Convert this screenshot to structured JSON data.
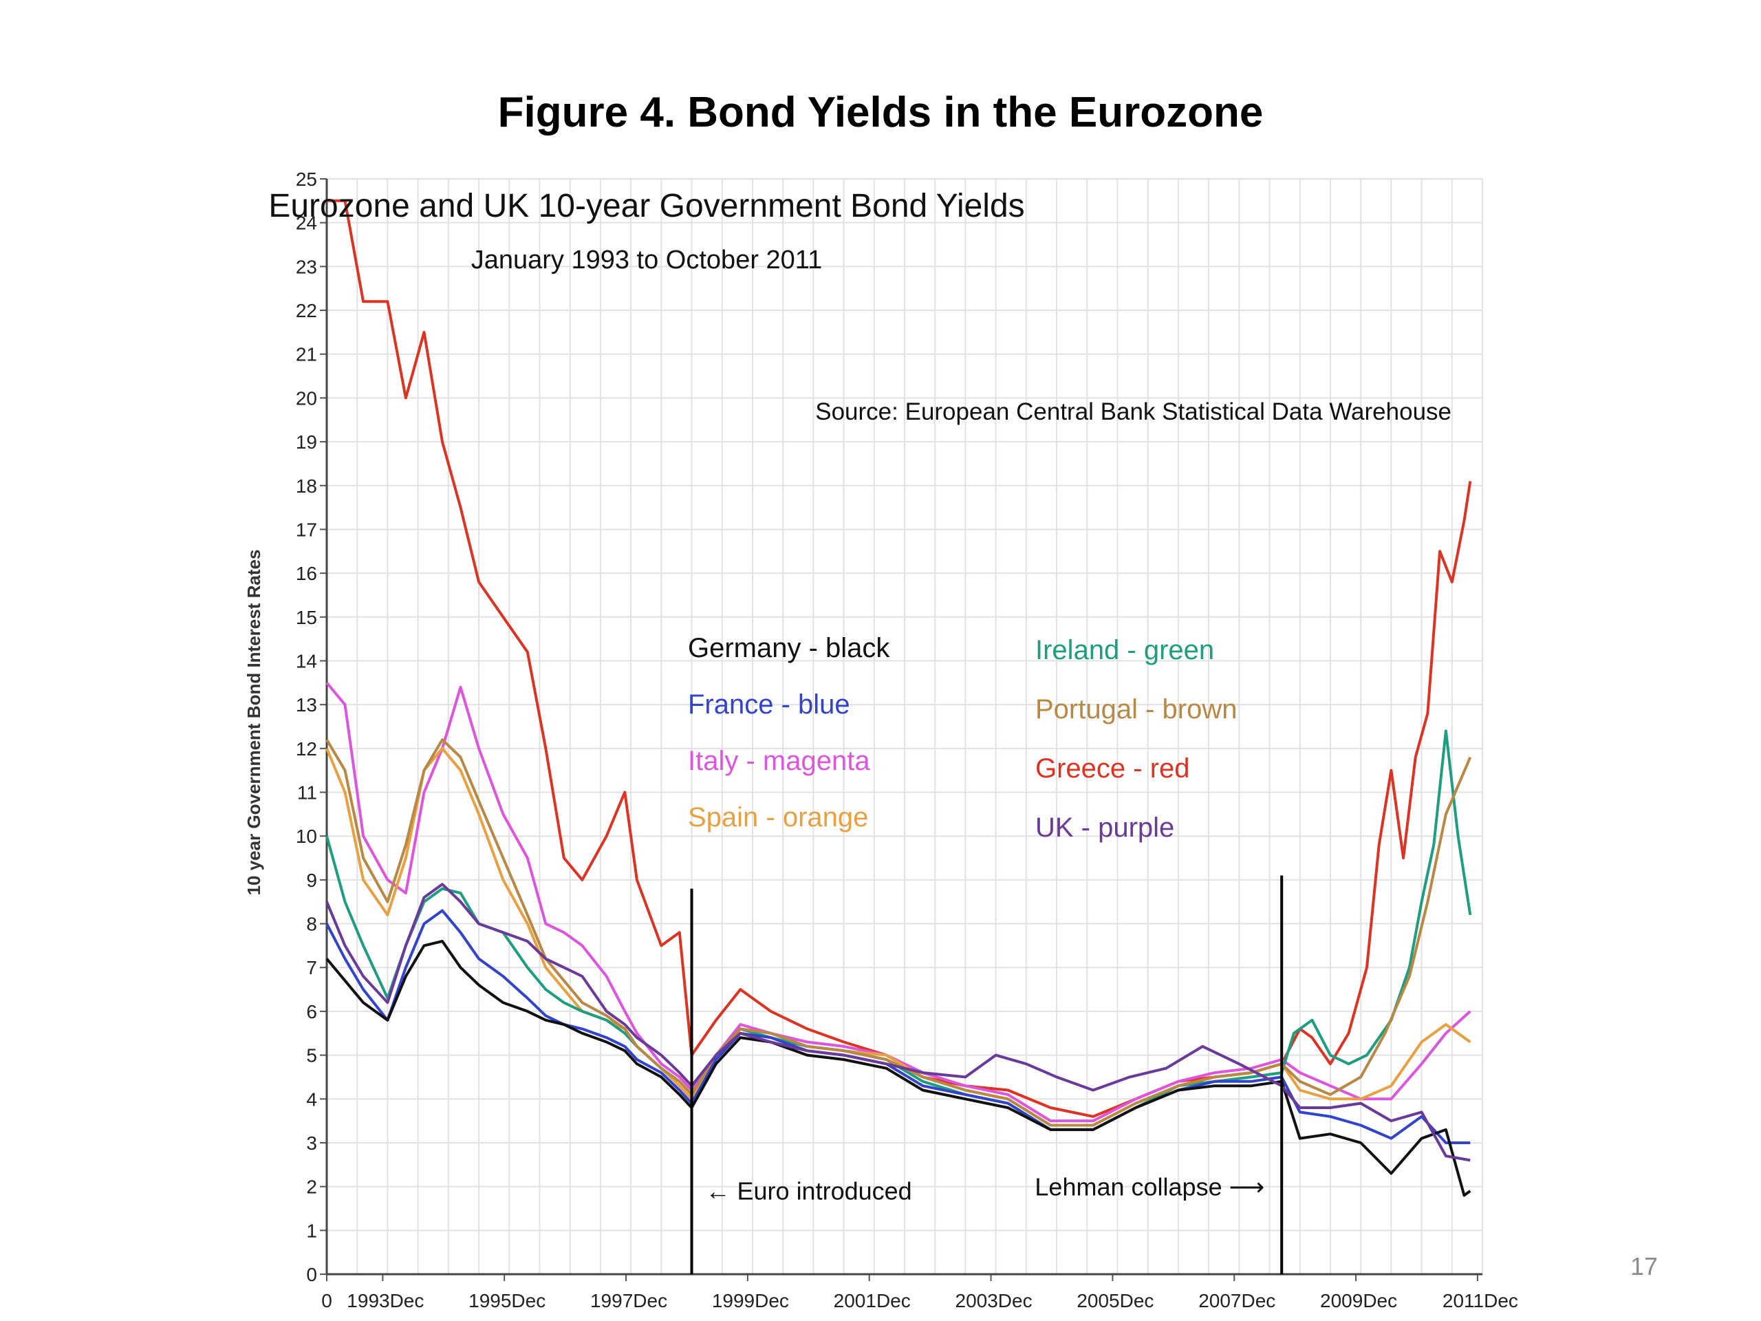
{
  "slide": {
    "title": "Figure 4. Bond Yields in the Eurozone",
    "page_number": "17"
  },
  "chart_data": {
    "type": "line",
    "title": "Eurozone and UK 10-year Government Bond Yields",
    "subtitle": "January 1993 to October 2011",
    "source": "Source:  European Central Bank Statistical Data Warehouse",
    "ylabel": "10 year Government Bond Interest Rates",
    "xlabel": "",
    "ylim": [
      0,
      25
    ],
    "xlim": [
      1993.0,
      2012.0
    ],
    "yticks": [
      0,
      1,
      2,
      3,
      4,
      5,
      6,
      7,
      8,
      9,
      10,
      11,
      12,
      13,
      14,
      15,
      16,
      17,
      18,
      19,
      20,
      21,
      22,
      23,
      24,
      25
    ],
    "xticks": [
      {
        "x": 1993.0,
        "label": "0"
      },
      {
        "x": 1993.92,
        "label": "1993Dec"
      },
      {
        "x": 1995.92,
        "label": "1995Dec"
      },
      {
        "x": 1997.92,
        "label": "1997Dec"
      },
      {
        "x": 1999.92,
        "label": "1999Dec"
      },
      {
        "x": 2001.92,
        "label": "2001Dec"
      },
      {
        "x": 2003.92,
        "label": "2003Dec"
      },
      {
        "x": 2005.92,
        "label": "2005Dec"
      },
      {
        "x": 2007.92,
        "label": "2007Dec"
      },
      {
        "x": 2009.92,
        "label": "2009Dec"
      },
      {
        "x": 2011.92,
        "label": "2011Dec"
      }
    ],
    "grid": true,
    "legend": {
      "position": "center",
      "entries": [
        {
          "label": "Germany - black",
          "color": "#111111"
        },
        {
          "label": "France - blue",
          "color": "#3344cc"
        },
        {
          "label": "Italy - magenta",
          "color": "#dd55dd"
        },
        {
          "label": "Spain - orange",
          "color": "#e8a040"
        },
        {
          "label": "Ireland - green",
          "color": "#1e9e80"
        },
        {
          "label": "Portugal - brown",
          "color": "#b88844"
        },
        {
          "label": "Greece - red",
          "color": "#dd3322"
        },
        {
          "label": "UK - purple",
          "color": "#6a3a9a"
        }
      ]
    },
    "annotations": [
      {
        "text": "← Euro introduced",
        "x": 1999.0
      },
      {
        "text": "Lehman collapse ⟶",
        "x": 2008.7
      }
    ],
    "vlines": [
      {
        "x": 1999.0,
        "ymax": 8.8
      },
      {
        "x": 2008.7,
        "ymax": 9.1
      }
    ],
    "series": [
      {
        "name": "Greece - red",
        "color": "#dd3322",
        "x": [
          1993.0,
          1993.3,
          1993.6,
          1994.0,
          1994.3,
          1994.6,
          1994.9,
          1995.2,
          1995.5,
          1995.9,
          1996.3,
          1996.6,
          1996.9,
          1997.2,
          1997.6,
          1997.9,
          1998.1,
          1998.5,
          1998.8,
          1999.0,
          1999.4,
          1999.8,
          2000.3,
          2000.9,
          2001.5,
          2002.2,
          2002.8,
          2003.5,
          2004.2,
          2004.9,
          2005.6,
          2006.3,
          2007.0,
          2007.6,
          2008.2,
          2008.7,
          2009.0,
          2009.2,
          2009.5,
          2009.8,
          2010.1,
          2010.3,
          2010.5,
          2010.7,
          2010.9,
          2011.1,
          2011.3,
          2011.5,
          2011.7,
          2011.8
        ],
        "y": [
          24.5,
          24.5,
          22.2,
          22.2,
          20.0,
          21.5,
          19.0,
          17.5,
          15.8,
          15.0,
          14.2,
          12.0,
          9.5,
          9.0,
          10.0,
          11.0,
          9.0,
          7.5,
          7.8,
          5.0,
          5.8,
          6.5,
          6.0,
          5.6,
          5.3,
          5.0,
          4.5,
          4.3,
          4.2,
          3.8,
          3.6,
          4.0,
          4.4,
          4.5,
          4.6,
          4.8,
          5.6,
          5.4,
          4.8,
          5.5,
          7.0,
          9.8,
          11.5,
          9.5,
          11.8,
          12.8,
          16.5,
          15.8,
          17.2,
          18.1
        ]
      },
      {
        "name": "Italy - magenta",
        "color": "#dd55dd",
        "x": [
          1993.0,
          1993.3,
          1993.6,
          1994.0,
          1994.3,
          1994.6,
          1994.9,
          1995.2,
          1995.5,
          1995.9,
          1996.3,
          1996.6,
          1996.9,
          1997.2,
          1997.6,
          1997.9,
          1998.1,
          1998.5,
          1998.8,
          1999.0,
          1999.4,
          1999.8,
          2000.3,
          2000.9,
          2001.5,
          2002.2,
          2002.8,
          2003.5,
          2004.2,
          2004.9,
          2005.6,
          2006.3,
          2007.0,
          2007.6,
          2008.2,
          2008.7,
          2009.0,
          2009.5,
          2010.0,
          2010.5,
          2011.0,
          2011.4,
          2011.8
        ],
        "y": [
          13.5,
          13.0,
          10.0,
          9.0,
          8.7,
          11.0,
          12.0,
          13.4,
          12.0,
          10.5,
          9.5,
          8.0,
          7.8,
          7.5,
          6.8,
          6.0,
          5.5,
          4.8,
          4.5,
          4.2,
          5.0,
          5.7,
          5.5,
          5.3,
          5.2,
          5.0,
          4.6,
          4.3,
          4.1,
          3.5,
          3.5,
          4.0,
          4.4,
          4.6,
          4.7,
          4.9,
          4.6,
          4.3,
          4.0,
          4.0,
          4.8,
          5.5,
          6.0
        ]
      },
      {
        "name": "Spain - orange",
        "color": "#e8a040",
        "x": [
          1993.0,
          1993.3,
          1993.6,
          1994.0,
          1994.3,
          1994.6,
          1994.9,
          1995.2,
          1995.5,
          1995.9,
          1996.3,
          1996.6,
          1996.9,
          1997.2,
          1997.6,
          1997.9,
          1998.1,
          1998.5,
          1998.8,
          1999.0,
          1999.4,
          1999.8,
          2000.3,
          2000.9,
          2001.5,
          2002.2,
          2002.8,
          2003.5,
          2004.2,
          2004.9,
          2005.6,
          2006.3,
          2007.0,
          2007.6,
          2008.2,
          2008.7,
          2009.0,
          2009.5,
          2010.0,
          2010.5,
          2011.0,
          2011.4,
          2011.8
        ],
        "y": [
          12.0,
          11.0,
          9.0,
          8.2,
          9.5,
          11.5,
          12.0,
          11.5,
          10.5,
          9.0,
          8.0,
          7.0,
          6.5,
          6.0,
          5.8,
          5.6,
          5.2,
          4.7,
          4.3,
          4.0,
          5.0,
          5.6,
          5.5,
          5.2,
          5.1,
          5.0,
          4.5,
          4.2,
          4.0,
          3.4,
          3.4,
          3.9,
          4.3,
          4.5,
          4.6,
          4.8,
          4.2,
          4.0,
          4.0,
          4.3,
          5.3,
          5.7,
          5.3
        ]
      },
      {
        "name": "Ireland - green",
        "color": "#1e9e80",
        "x": [
          1993.0,
          1993.3,
          1993.6,
          1994.0,
          1994.3,
          1994.6,
          1994.9,
          1995.2,
          1995.5,
          1995.9,
          1996.3,
          1996.6,
          1996.9,
          1997.2,
          1997.6,
          1997.9,
          1998.1,
          1998.5,
          1998.8,
          1999.0,
          1999.4,
          1999.8,
          2000.3,
          2000.9,
          2001.5,
          2002.2,
          2002.8,
          2003.5,
          2004.2,
          2004.9,
          2005.6,
          2006.3,
          2007.0,
          2007.6,
          2008.2,
          2008.7,
          2008.9,
          2009.2,
          2009.5,
          2009.8,
          2010.1,
          2010.5,
          2010.8,
          2011.0,
          2011.2,
          2011.4,
          2011.6,
          2011.8
        ],
        "y": [
          10.0,
          8.5,
          7.5,
          6.3,
          7.5,
          8.5,
          8.8,
          8.7,
          8.0,
          7.8,
          7.0,
          6.5,
          6.2,
          6.0,
          5.8,
          5.5,
          5.2,
          4.7,
          4.4,
          4.1,
          5.0,
          5.6,
          5.4,
          5.2,
          5.1,
          4.9,
          4.4,
          4.1,
          3.9,
          3.3,
          3.3,
          3.8,
          4.3,
          4.4,
          4.5,
          4.6,
          5.5,
          5.8,
          5.0,
          4.8,
          5.0,
          5.8,
          7.0,
          8.5,
          9.8,
          12.4,
          10.0,
          8.2
        ]
      },
      {
        "name": "Portugal - brown",
        "color": "#b88844",
        "x": [
          1993.0,
          1993.3,
          1993.6,
          1994.0,
          1994.3,
          1994.6,
          1994.9,
          1995.2,
          1995.5,
          1995.9,
          1996.3,
          1996.6,
          1996.9,
          1997.2,
          1997.6,
          1997.9,
          1998.1,
          1998.5,
          1998.8,
          1999.0,
          1999.4,
          1999.8,
          2000.3,
          2000.9,
          2001.5,
          2002.2,
          2002.8,
          2003.5,
          2004.2,
          2004.9,
          2005.6,
          2006.3,
          2007.0,
          2007.6,
          2008.2,
          2008.7,
          2009.0,
          2009.5,
          2010.0,
          2010.4,
          2010.8,
          2011.1,
          2011.4,
          2011.8
        ],
        "y": [
          12.2,
          11.5,
          9.5,
          8.5,
          9.8,
          11.5,
          12.2,
          11.8,
          10.8,
          9.5,
          8.2,
          7.2,
          6.7,
          6.2,
          5.9,
          5.6,
          5.2,
          4.7,
          4.4,
          4.1,
          5.0,
          5.6,
          5.5,
          5.2,
          5.1,
          4.9,
          4.5,
          4.2,
          4.0,
          3.4,
          3.4,
          3.9,
          4.3,
          4.5,
          4.6,
          4.8,
          4.4,
          4.1,
          4.5,
          5.5,
          6.8,
          8.5,
          10.5,
          11.8
        ]
      },
      {
        "name": "France - blue",
        "color": "#3344cc",
        "x": [
          1993.0,
          1993.3,
          1993.6,
          1994.0,
          1994.3,
          1994.6,
          1994.9,
          1995.2,
          1995.5,
          1995.9,
          1996.3,
          1996.6,
          1996.9,
          1997.2,
          1997.6,
          1997.9,
          1998.1,
          1998.5,
          1998.8,
          1999.0,
          1999.4,
          1999.8,
          2000.3,
          2000.9,
          2001.5,
          2002.2,
          2002.8,
          2003.5,
          2004.2,
          2004.9,
          2005.6,
          2006.3,
          2007.0,
          2007.6,
          2008.2,
          2008.7,
          2009.0,
          2009.5,
          2010.0,
          2010.5,
          2011.0,
          2011.4,
          2011.8
        ],
        "y": [
          8.0,
          7.2,
          6.5,
          5.8,
          7.0,
          8.0,
          8.3,
          7.8,
          7.2,
          6.8,
          6.3,
          5.9,
          5.7,
          5.6,
          5.4,
          5.2,
          4.9,
          4.6,
          4.2,
          3.9,
          4.9,
          5.5,
          5.4,
          5.1,
          5.0,
          4.8,
          4.3,
          4.1,
          3.9,
          3.3,
          3.3,
          3.8,
          4.2,
          4.4,
          4.4,
          4.5,
          3.7,
          3.6,
          3.4,
          3.1,
          3.6,
          3.0,
          3.0
        ]
      },
      {
        "name": "Germany - black",
        "color": "#111111",
        "x": [
          1993.0,
          1993.3,
          1993.6,
          1994.0,
          1994.3,
          1994.6,
          1994.9,
          1995.2,
          1995.5,
          1995.9,
          1996.3,
          1996.6,
          1996.9,
          1997.2,
          1997.6,
          1997.9,
          1998.1,
          1998.5,
          1998.8,
          1999.0,
          1999.4,
          1999.8,
          2000.3,
          2000.9,
          2001.5,
          2002.2,
          2002.8,
          2003.5,
          2004.2,
          2004.9,
          2005.6,
          2006.3,
          2007.0,
          2007.6,
          2008.2,
          2008.7,
          2009.0,
          2009.5,
          2010.0,
          2010.5,
          2011.0,
          2011.4,
          2011.7,
          2011.8
        ],
        "y": [
          7.2,
          6.7,
          6.2,
          5.8,
          6.8,
          7.5,
          7.6,
          7.0,
          6.6,
          6.2,
          6.0,
          5.8,
          5.7,
          5.5,
          5.3,
          5.1,
          4.8,
          4.5,
          4.1,
          3.8,
          4.8,
          5.4,
          5.3,
          5.0,
          4.9,
          4.7,
          4.2,
          4.0,
          3.8,
          3.3,
          3.3,
          3.8,
          4.2,
          4.3,
          4.3,
          4.4,
          3.1,
          3.2,
          3.0,
          2.3,
          3.1,
          3.3,
          1.8,
          1.9
        ]
      },
      {
        "name": "UK - purple",
        "color": "#6a3a9a",
        "x": [
          1993.0,
          1993.3,
          1993.6,
          1994.0,
          1994.3,
          1994.6,
          1994.9,
          1995.2,
          1995.5,
          1995.9,
          1996.3,
          1996.6,
          1996.9,
          1997.2,
          1997.6,
          1997.9,
          1998.1,
          1998.5,
          1998.8,
          1999.0,
          1999.4,
          1999.8,
          2000.3,
          2000.9,
          2001.5,
          2002.2,
          2002.8,
          2003.5,
          2004.0,
          2004.5,
          2005.0,
          2005.6,
          2006.2,
          2006.8,
          2007.4,
          2008.0,
          2008.7,
          2009.0,
          2009.5,
          2010.0,
          2010.5,
          2011.0,
          2011.4,
          2011.8
        ],
        "y": [
          8.5,
          7.5,
          6.8,
          6.2,
          7.5,
          8.6,
          8.9,
          8.5,
          8.0,
          7.8,
          7.6,
          7.2,
          7.0,
          6.8,
          6.0,
          5.7,
          5.4,
          5.0,
          4.6,
          4.3,
          5.0,
          5.5,
          5.3,
          5.1,
          5.0,
          4.8,
          4.6,
          4.5,
          5.0,
          4.8,
          4.5,
          4.2,
          4.5,
          4.7,
          5.2,
          4.8,
          4.3,
          3.8,
          3.8,
          3.9,
          3.5,
          3.7,
          2.7,
          2.6
        ]
      }
    ]
  }
}
